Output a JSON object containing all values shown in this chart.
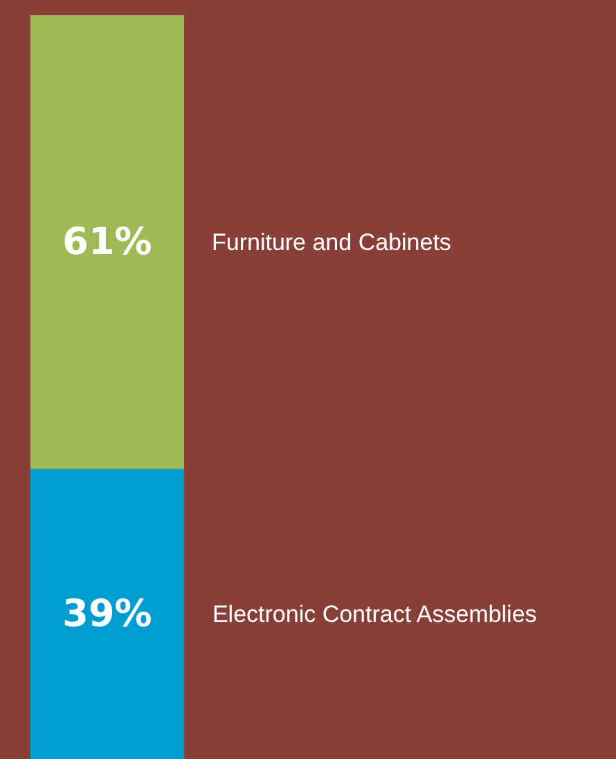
{
  "chart_data": {
    "type": "bar",
    "stacked": true,
    "categories": [
      null
    ],
    "ylim": [
      0,
      100
    ],
    "tick_labels": false,
    "legend": false,
    "series": [
      {
        "name": "Electronic Contract Assemblies",
        "color": "#029dcf",
        "values": [
          39
        ],
        "value_labels": [
          "39%"
        ]
      },
      {
        "name": "Furniture and Cabinets",
        "color": "#9fba55",
        "values": [
          61
        ],
        "value_labels": [
          "61%"
        ]
      }
    ]
  }
}
